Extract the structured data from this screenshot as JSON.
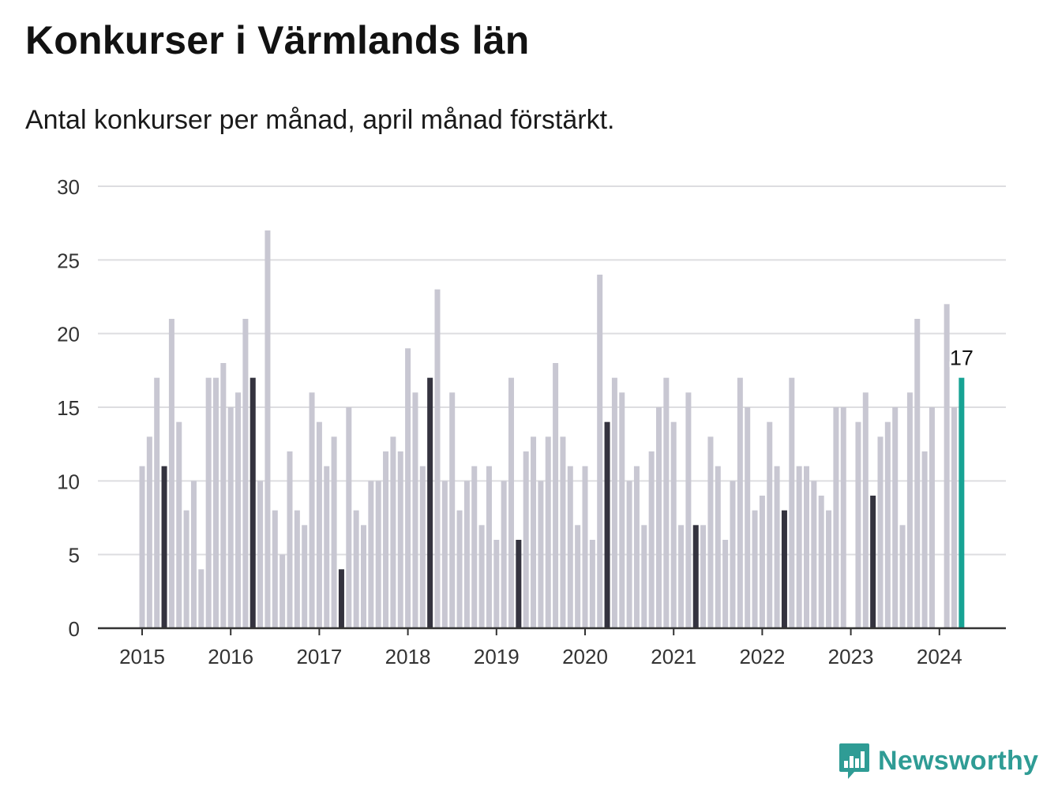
{
  "title": "Konkurser i Värmlands län",
  "subtitle": "Antal konkurser per månad, april månad förstärkt.",
  "logo": {
    "text": "Newsworthy",
    "icon": "bar-chart-speech-bubble-icon"
  },
  "colors": {
    "bar": "#c8c7d2",
    "april": "#34333f",
    "latest": "#17a394",
    "grid": "#dddde0",
    "axis": "#333333",
    "logo": "#2f9c95"
  },
  "chart_data": {
    "type": "bar",
    "title": "Konkurser i Värmlands län",
    "xlabel": "",
    "ylabel": "",
    "ylim": [
      0,
      30
    ],
    "yticks": [
      "0",
      "5",
      "10",
      "15",
      "20",
      "25",
      "30"
    ],
    "xticks": [
      "2015",
      "2016",
      "2017",
      "2018",
      "2019",
      "2020",
      "2021",
      "2022",
      "2023",
      "2024"
    ],
    "start_month": "2015-01",
    "highlight": "april",
    "latest_label": "17",
    "grid": true,
    "values": [
      11,
      13,
      17,
      11,
      21,
      14,
      8,
      10,
      4,
      17,
      17,
      18,
      15,
      16,
      21,
      17,
      10,
      27,
      8,
      5,
      12,
      8,
      7,
      16,
      14,
      11,
      13,
      4,
      15,
      8,
      7,
      10,
      10,
      12,
      13,
      12,
      19,
      16,
      11,
      17,
      23,
      10,
      16,
      8,
      10,
      11,
      7,
      11,
      6,
      10,
      17,
      6,
      12,
      13,
      10,
      13,
      18,
      13,
      11,
      7,
      11,
      6,
      24,
      14,
      17,
      16,
      10,
      11,
      7,
      12,
      15,
      17,
      14,
      7,
      16,
      7,
      7,
      13,
      11,
      6,
      10,
      17,
      15,
      8,
      9,
      14,
      11,
      8,
      17,
      11,
      11,
      10,
      9,
      8,
      15,
      15,
      0,
      14,
      16,
      9,
      13,
      14,
      15,
      7,
      16,
      21,
      12,
      15,
      0,
      22,
      15,
      17
    ]
  }
}
